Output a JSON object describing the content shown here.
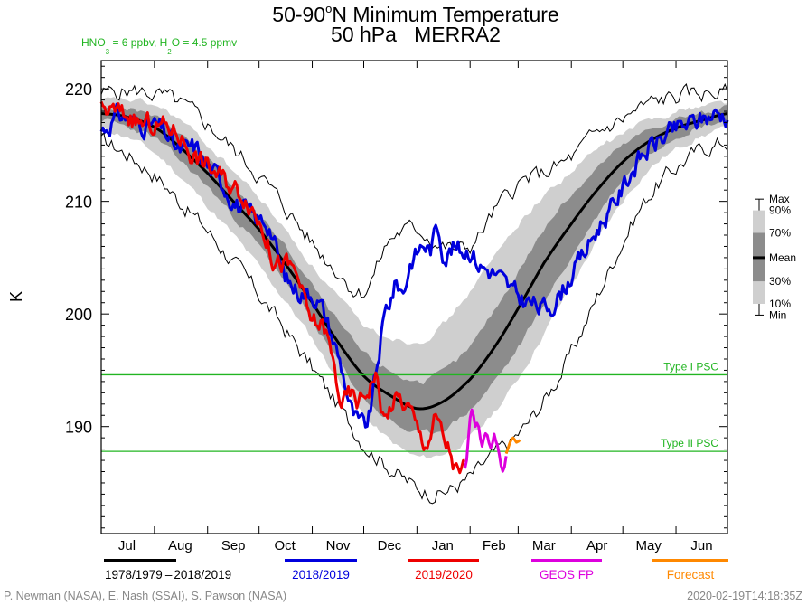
{
  "chart_data": {
    "type": "line",
    "title_line1_pre": "50-90",
    "title_line1_sup": "o",
    "title_line1_post": "N Minimum Temperature",
    "title_line2": "50 hPa   MERRA2",
    "subtitle_parts": [
      {
        "t": "HNO",
        "sub": false
      },
      {
        "t": "3",
        "sub": true
      },
      {
        "t": " = 6 ppbv, H",
        "sub": false
      },
      {
        "t": "2",
        "sub": true
      },
      {
        "t": "O = 4.5 ppmv",
        "sub": false
      }
    ],
    "ylabel": "K",
    "ylim": [
      180.5,
      222.5
    ],
    "yticks": [
      190,
      200,
      210,
      220
    ],
    "xlim": [
      0,
      365
    ],
    "months": [
      {
        "label": "Jul",
        "start": 0,
        "mid": 15
      },
      {
        "label": "Aug",
        "start": 31,
        "mid": 46
      },
      {
        "label": "Sep",
        "start": 62,
        "mid": 77
      },
      {
        "label": "Oct",
        "start": 92,
        "mid": 107
      },
      {
        "label": "Nov",
        "start": 123,
        "mid": 138
      },
      {
        "label": "Dec",
        "start": 153,
        "mid": 168
      },
      {
        "label": "Jan",
        "start": 184,
        "mid": 199
      },
      {
        "label": "Feb",
        "start": 215,
        "mid": 229
      },
      {
        "label": "Mar",
        "start": 243,
        "mid": 258
      },
      {
        "label": "Apr",
        "start": 274,
        "mid": 289
      },
      {
        "label": "May",
        "start": 304,
        "mid": 319
      },
      {
        "label": "Jun",
        "start": 335,
        "mid": 350
      }
    ],
    "thresholds": [
      {
        "name": "Type I PSC",
        "value": 194.6,
        "color": "#22b522"
      },
      {
        "name": "Type II PSC",
        "value": 187.8,
        "color": "#22b522"
      }
    ],
    "climatology_days": [
      0,
      15,
      31,
      46,
      62,
      77,
      92,
      107,
      123,
      138,
      153,
      168,
      184,
      199,
      215,
      229,
      243,
      258,
      274,
      289,
      304,
      319,
      335,
      350,
      365
    ],
    "mean": [
      217.8,
      217.5,
      216.6,
      214.8,
      212.5,
      210.0,
      207.5,
      204.5,
      201.0,
      197.5,
      194.5,
      192.8,
      191.6,
      192.2,
      194.2,
      197.0,
      200.5,
      204.5,
      208.0,
      211.0,
      213.5,
      215.3,
      216.5,
      217.2,
      217.8
    ],
    "p30": [
      217.2,
      216.6,
      215.6,
      213.6,
      211.3,
      208.7,
      206.0,
      203.0,
      199.4,
      195.8,
      192.6,
      190.6,
      189.4,
      189.8,
      191.5,
      194.0,
      197.0,
      201.0,
      205.0,
      208.7,
      212.0,
      214.3,
      215.8,
      216.7,
      217.2
    ],
    "p70": [
      218.3,
      218.2,
      217.5,
      216.0,
      213.7,
      211.3,
      208.8,
      206.0,
      202.5,
      199.3,
      196.5,
      195.0,
      194.0,
      194.8,
      197.0,
      200.3,
      203.8,
      207.5,
      210.6,
      213.0,
      214.9,
      216.3,
      217.3,
      217.8,
      218.3
    ],
    "p10": [
      216.4,
      215.7,
      214.3,
      212.2,
      209.6,
      207.0,
      204.2,
      201.2,
      197.8,
      194.2,
      191.0,
      188.8,
      187.3,
      187.6,
      189.0,
      191.3,
      194.3,
      198.3,
      202.5,
      206.5,
      210.0,
      212.8,
      214.6,
      215.8,
      216.4
    ],
    "p90": [
      218.9,
      219.0,
      218.5,
      217.2,
      215.0,
      212.7,
      210.3,
      207.5,
      204.3,
      201.5,
      199.0,
      198.0,
      197.6,
      199.0,
      202.0,
      205.0,
      208.0,
      210.5,
      212.6,
      214.6,
      216.0,
      217.2,
      218.0,
      218.5,
      218.9
    ],
    "min": [
      215.3,
      214.2,
      212.4,
      210.0,
      207.4,
      204.6,
      201.7,
      198.6,
      195.2,
      191.8,
      188.6,
      186.4,
      184.6,
      184.2,
      185.5,
      187.5,
      189.3,
      192.3,
      196.5,
      201.5,
      206.5,
      210.5,
      213.0,
      214.6,
      215.3
    ],
    "max": [
      219.6,
      219.8,
      219.5,
      218.6,
      216.8,
      214.6,
      212.3,
      209.5,
      206.3,
      203.8,
      202.0,
      206.5,
      207.5,
      206.0,
      206.0,
      209.0,
      211.5,
      212.5,
      213.8,
      216.0,
      217.3,
      218.6,
      219.3,
      219.6,
      219.6
    ],
    "series": [
      {
        "name": "2018/2019",
        "color": "#0000dd",
        "x": [
          0,
          10,
          20,
          30,
          40,
          45,
          55,
          62,
          70,
          80,
          90,
          98,
          105,
          112,
          118,
          125,
          133,
          140,
          147,
          155,
          160,
          165,
          168,
          172,
          176,
          180,
          184,
          188,
          192,
          196,
          200,
          205,
          210,
          215,
          220,
          225,
          230,
          236,
          243,
          250,
          258,
          266,
          274,
          282,
          290,
          298,
          304,
          310,
          318,
          326,
          335,
          342,
          350,
          358,
          365
        ],
        "y": [
          216.3,
          217.6,
          216.9,
          216.8,
          215.6,
          214.4,
          214.7,
          213.1,
          211.8,
          209.6,
          208.4,
          207.9,
          204.0,
          202.4,
          202.0,
          201.6,
          198.8,
          195.3,
          191.0,
          190.2,
          194.5,
          199.5,
          201.1,
          202.7,
          202.1,
          204.5,
          205.4,
          206.2,
          205.8,
          207.7,
          205.4,
          205.9,
          205.6,
          205.8,
          204.5,
          204.0,
          203.5,
          202.5,
          201.5,
          201.0,
          200.5,
          201.5,
          203.5,
          205.5,
          207.8,
          209.5,
          211.2,
          213.0,
          214.5,
          215.5,
          216.3,
          216.8,
          217.3,
          217.8,
          217.7
        ]
      },
      {
        "name": "2019/2020",
        "color": "#ee0000",
        "x": [
          0,
          8,
          15,
          25,
          35,
          45,
          55,
          65,
          75,
          85,
          95,
          100,
          108,
          115,
          120,
          125,
          130,
          135,
          140,
          145,
          150,
          155,
          160,
          165,
          170,
          175,
          180,
          185,
          190,
          195,
          200,
          203,
          206,
          209,
          212
        ],
        "y": [
          218.1,
          217.9,
          217.6,
          216.8,
          216.7,
          216.0,
          214.0,
          212.8,
          211.5,
          210.3,
          207.5,
          204.9,
          204.3,
          203.1,
          200.0,
          199.1,
          198.7,
          195.7,
          192.3,
          192.7,
          192.2,
          193.2,
          194.5,
          190.7,
          192.2,
          192.2,
          191.4,
          189.5,
          188.7,
          190.6,
          188.7,
          187.9,
          186.4,
          185.6,
          186.3
        ]
      },
      {
        "name": "GEOS FP",
        "color": "#dd00dd",
        "x": [
          212,
          214,
          216,
          218,
          220,
          222,
          224,
          226,
          228,
          230,
          232,
          234,
          236
        ],
        "y": [
          186.3,
          188.5,
          190.5,
          189.5,
          189.0,
          188.0,
          189.5,
          188.5,
          188.0,
          188.5,
          187.5,
          186.8,
          187.6
        ]
      },
      {
        "name": "Forecast",
        "color": "#ff8800",
        "x": [
          236,
          238,
          240,
          242,
          244
        ],
        "y": [
          187.6,
          188.5,
          189.0,
          188.6,
          188.8
        ]
      }
    ],
    "key": {
      "labels": [
        "Max",
        "90%",
        "70%",
        "Mean",
        "30%",
        "10%",
        "Min"
      ],
      "values": [
        210.2,
        209.2,
        207.2,
        205.0,
        202.9,
        200.9,
        199.9
      ]
    },
    "legend": [
      {
        "label_a": "1978/1979",
        "label_b": "2018/2019",
        "color": "#000000"
      },
      {
        "label": "2018/2019",
        "color": "#0000dd"
      },
      {
        "label": "2019/2020",
        "color": "#ee0000"
      },
      {
        "label": "GEOS FP",
        "color": "#dd00dd"
      },
      {
        "label": "Forecast",
        "color": "#ff8800"
      }
    ],
    "credit": "P. Newman (NASA), E. Nash (SSAI), S. Pawson (NASA)",
    "timestamp": "2020-02-19T14:18:35Z"
  }
}
